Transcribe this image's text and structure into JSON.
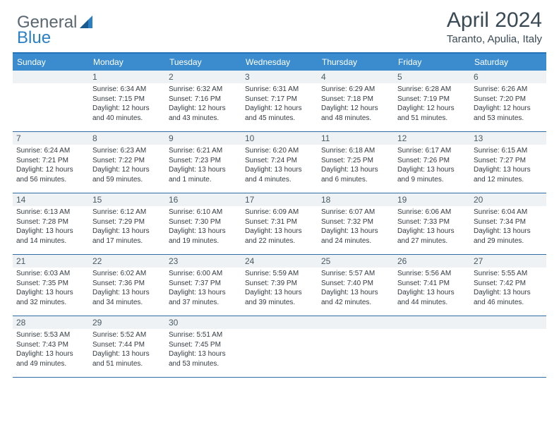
{
  "brand": {
    "part1": "General",
    "part2": "Blue"
  },
  "title": "April 2024",
  "location": "Taranto, Apulia, Italy",
  "colors": {
    "header_bg": "#3a8cce",
    "rule": "#2f6ea5",
    "daynum_bg": "#eef2f4",
    "text": "#333b42"
  },
  "day_headers": [
    "Sunday",
    "Monday",
    "Tuesday",
    "Wednesday",
    "Thursday",
    "Friday",
    "Saturday"
  ],
  "weeks": [
    [
      null,
      {
        "n": "1",
        "sr": "6:34 AM",
        "ss": "7:15 PM",
        "dl": "12 hours and 40 minutes."
      },
      {
        "n": "2",
        "sr": "6:32 AM",
        "ss": "7:16 PM",
        "dl": "12 hours and 43 minutes."
      },
      {
        "n": "3",
        "sr": "6:31 AM",
        "ss": "7:17 PM",
        "dl": "12 hours and 45 minutes."
      },
      {
        "n": "4",
        "sr": "6:29 AM",
        "ss": "7:18 PM",
        "dl": "12 hours and 48 minutes."
      },
      {
        "n": "5",
        "sr": "6:28 AM",
        "ss": "7:19 PM",
        "dl": "12 hours and 51 minutes."
      },
      {
        "n": "6",
        "sr": "6:26 AM",
        "ss": "7:20 PM",
        "dl": "12 hours and 53 minutes."
      }
    ],
    [
      {
        "n": "7",
        "sr": "6:24 AM",
        "ss": "7:21 PM",
        "dl": "12 hours and 56 minutes."
      },
      {
        "n": "8",
        "sr": "6:23 AM",
        "ss": "7:22 PM",
        "dl": "12 hours and 59 minutes."
      },
      {
        "n": "9",
        "sr": "6:21 AM",
        "ss": "7:23 PM",
        "dl": "13 hours and 1 minute."
      },
      {
        "n": "10",
        "sr": "6:20 AM",
        "ss": "7:24 PM",
        "dl": "13 hours and 4 minutes."
      },
      {
        "n": "11",
        "sr": "6:18 AM",
        "ss": "7:25 PM",
        "dl": "13 hours and 6 minutes."
      },
      {
        "n": "12",
        "sr": "6:17 AM",
        "ss": "7:26 PM",
        "dl": "13 hours and 9 minutes."
      },
      {
        "n": "13",
        "sr": "6:15 AM",
        "ss": "7:27 PM",
        "dl": "13 hours and 12 minutes."
      }
    ],
    [
      {
        "n": "14",
        "sr": "6:13 AM",
        "ss": "7:28 PM",
        "dl": "13 hours and 14 minutes."
      },
      {
        "n": "15",
        "sr": "6:12 AM",
        "ss": "7:29 PM",
        "dl": "13 hours and 17 minutes."
      },
      {
        "n": "16",
        "sr": "6:10 AM",
        "ss": "7:30 PM",
        "dl": "13 hours and 19 minutes."
      },
      {
        "n": "17",
        "sr": "6:09 AM",
        "ss": "7:31 PM",
        "dl": "13 hours and 22 minutes."
      },
      {
        "n": "18",
        "sr": "6:07 AM",
        "ss": "7:32 PM",
        "dl": "13 hours and 24 minutes."
      },
      {
        "n": "19",
        "sr": "6:06 AM",
        "ss": "7:33 PM",
        "dl": "13 hours and 27 minutes."
      },
      {
        "n": "20",
        "sr": "6:04 AM",
        "ss": "7:34 PM",
        "dl": "13 hours and 29 minutes."
      }
    ],
    [
      {
        "n": "21",
        "sr": "6:03 AM",
        "ss": "7:35 PM",
        "dl": "13 hours and 32 minutes."
      },
      {
        "n": "22",
        "sr": "6:02 AM",
        "ss": "7:36 PM",
        "dl": "13 hours and 34 minutes."
      },
      {
        "n": "23",
        "sr": "6:00 AM",
        "ss": "7:37 PM",
        "dl": "13 hours and 37 minutes."
      },
      {
        "n": "24",
        "sr": "5:59 AM",
        "ss": "7:39 PM",
        "dl": "13 hours and 39 minutes."
      },
      {
        "n": "25",
        "sr": "5:57 AM",
        "ss": "7:40 PM",
        "dl": "13 hours and 42 minutes."
      },
      {
        "n": "26",
        "sr": "5:56 AM",
        "ss": "7:41 PM",
        "dl": "13 hours and 44 minutes."
      },
      {
        "n": "27",
        "sr": "5:55 AM",
        "ss": "7:42 PM",
        "dl": "13 hours and 46 minutes."
      }
    ],
    [
      {
        "n": "28",
        "sr": "5:53 AM",
        "ss": "7:43 PM",
        "dl": "13 hours and 49 minutes."
      },
      {
        "n": "29",
        "sr": "5:52 AM",
        "ss": "7:44 PM",
        "dl": "13 hours and 51 minutes."
      },
      {
        "n": "30",
        "sr": "5:51 AM",
        "ss": "7:45 PM",
        "dl": "13 hours and 53 minutes."
      },
      null,
      null,
      null,
      null
    ]
  ],
  "labels": {
    "sunrise": "Sunrise:",
    "sunset": "Sunset:",
    "daylight": "Daylight:"
  }
}
